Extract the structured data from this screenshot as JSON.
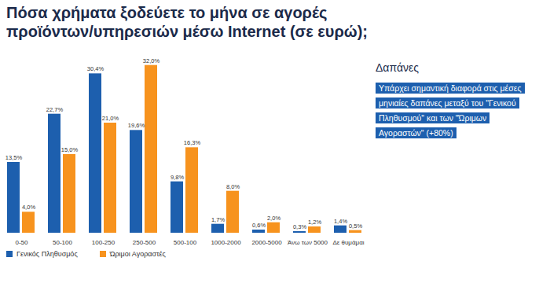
{
  "chart_data": {
    "type": "bar",
    "title": "Πόσα χρήματα ξοδεύετε το μήνα σε αγορές προϊόντων/υπηρεσιών μέσω Internet (σε ευρώ);",
    "categories": [
      "0-50",
      "50-100",
      "100-250",
      "250-500",
      "500-100",
      "1000-2000",
      "2000-5000",
      "Άνω των 5000",
      "Δε θυμάμαι"
    ],
    "series": [
      {
        "name": "Γενικός Πληθυσμός",
        "color": "#1d5fae",
        "values": [
          13.5,
          22.7,
          30.4,
          19.6,
          9.8,
          1.7,
          0.6,
          0.3,
          1.4
        ],
        "value_labels": [
          "13,5%",
          "22,7%",
          "30,4%",
          "19,6%",
          "9,8%",
          "1,7%",
          "0,6%",
          "0,3%",
          "1,4%"
        ]
      },
      {
        "name": "Ώριμοι Αγοραστές",
        "color": "#f7931e",
        "values": [
          4.0,
          15.0,
          21.0,
          32.0,
          16.3,
          8.0,
          2.0,
          1.2,
          0.5
        ],
        "value_labels": [
          "4,0%",
          "15,0%",
          "21,0%",
          "32,0%",
          "16,3%",
          "8,0%",
          "2,0%",
          "1,2%",
          "0,5%"
        ]
      }
    ],
    "ylim": [
      0,
      33
    ],
    "tick_labels": "x",
    "grid": false,
    "data_labels": true,
    "legend": "bottom-left",
    "annotations": [
      {
        "title": "Δαπάνες",
        "text": [
          "Υπάρχει σημαντική διαφορά στις μέσες",
          "μηνιαίες δαπάνες μεταξύ του \"Γενικού",
          "Πληθυσμού\" και των \"Ώριμων",
          "Αγοραστών\" (+80%)"
        ]
      }
    ]
  }
}
